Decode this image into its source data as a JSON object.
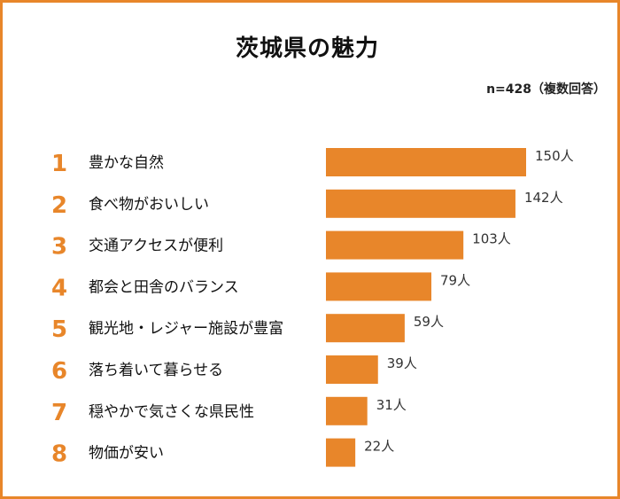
{
  "title": "茨城県の魅力",
  "note": "n=428（複数回答）",
  "colors": {
    "bar": "#e8862a",
    "rank": "#e8862a",
    "border": "#e8862a"
  },
  "chart_data": {
    "type": "bar",
    "orientation": "horizontal",
    "title": "茨城県の魅力",
    "unit": "人",
    "categories": [
      "豊かな自然",
      "食べ物がおいしい",
      "交通アクセスが便利",
      "都会と田舎のバランス",
      "観光地・レジャー施設が豊富",
      "落ち着いて暮らせる",
      "穏やかで気さくな県民性",
      "物価が安い"
    ],
    "ranks": [
      "1",
      "2",
      "3",
      "4",
      "5",
      "6",
      "7",
      "8"
    ],
    "values": [
      150,
      142,
      103,
      79,
      59,
      39,
      31,
      22
    ],
    "value_labels": [
      "150人",
      "142人",
      "103人",
      "79人",
      "59人",
      "39人",
      "31人",
      "22人"
    ],
    "xlim": [
      0,
      150
    ]
  }
}
